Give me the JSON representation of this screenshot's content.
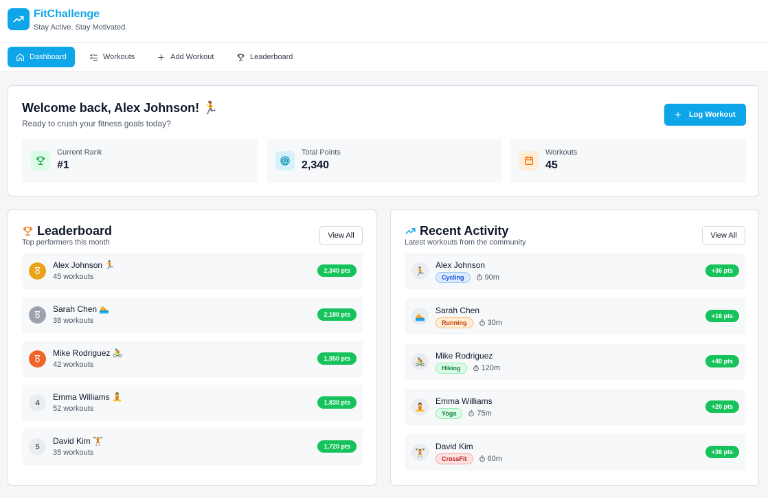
{
  "header": {
    "title": "FitChallenge",
    "subtitle": "Stay Active. Stay Motivated.",
    "logo_icon": "trending-up-icon"
  },
  "nav": {
    "tabs": [
      {
        "label": "Dashboard",
        "icon": "home-icon",
        "active": true
      },
      {
        "label": "Workouts",
        "icon": "list-icon",
        "active": false
      },
      {
        "label": "Add Workout",
        "icon": "plus-icon",
        "active": false
      },
      {
        "label": "Leaderboard",
        "icon": "trophy-icon",
        "active": false
      }
    ]
  },
  "welcome": {
    "title": "Welcome back, Alex Johnson! 🏃",
    "subtitle": "Ready to crush your fitness goals today?",
    "log_button": "Log Workout",
    "stats": [
      {
        "label": "Current Rank",
        "value": "#1",
        "icon": "trophy-icon",
        "color": "#16a34a",
        "bg": "#dcfce7"
      },
      {
        "label": "Total Points",
        "value": "2,340",
        "icon": "target-icon",
        "color": "#0891b2",
        "bg": "#d6f1fb"
      },
      {
        "label": "Workouts",
        "value": "45",
        "icon": "calendar-icon",
        "color": "#f97316",
        "bg": "#ffedd5"
      }
    ]
  },
  "leaderboard": {
    "title": "Leaderboard",
    "subtitle": "Top performers this month",
    "view_all": "View All",
    "rows": [
      {
        "rank": "",
        "medal": "gold",
        "name": "Alex Johnson 🏃",
        "workouts": "45 workouts",
        "points": "2,340 pts"
      },
      {
        "rank": "",
        "medal": "silver",
        "name": "Sarah Chen 🏊",
        "workouts": "38 workouts",
        "points": "2,180 pts"
      },
      {
        "rank": "",
        "medal": "bronze",
        "name": "Mike Rodriguez 🚴",
        "workouts": "42 workouts",
        "points": "1,950 pts"
      },
      {
        "rank": "4",
        "medal": "",
        "name": "Emma Williams 🧘",
        "workouts": "52 workouts",
        "points": "1,830 pts"
      },
      {
        "rank": "5",
        "medal": "",
        "name": "David Kim 🏋️",
        "workouts": "35 workouts",
        "points": "1,720 pts"
      }
    ]
  },
  "activity": {
    "title": "Recent Activity",
    "subtitle": "Latest workouts from the community",
    "view_all": "View All",
    "rows": [
      {
        "avatar": "🏃",
        "name": "Alex Johnson",
        "type": "Cycling",
        "tag_bg": "#dbeafe",
        "tag_fg": "#1d4ed8",
        "tag_border": "#93c5fd",
        "duration": "90m",
        "points": "+36 pts"
      },
      {
        "avatar": "🏊",
        "name": "Sarah Chen",
        "type": "Running",
        "tag_bg": "#ffedd5",
        "tag_fg": "#c2410c",
        "tag_border": "#fdba74",
        "duration": "30m",
        "points": "+16 pts"
      },
      {
        "avatar": "🚴",
        "name": "Mike Rodriguez",
        "type": "Hiking",
        "tag_bg": "#dcfce7",
        "tag_fg": "#15803d",
        "tag_border": "#86efac",
        "duration": "120m",
        "points": "+40 pts"
      },
      {
        "avatar": "🧘",
        "name": "Emma Williams",
        "type": "Yoga",
        "tag_bg": "#dcfce7",
        "tag_fg": "#15803d",
        "tag_border": "#86efac",
        "duration": "75m",
        "points": "+20 pts"
      },
      {
        "avatar": "🏋️",
        "name": "David Kim",
        "type": "CrossFit",
        "tag_bg": "#fee2e2",
        "tag_fg": "#b91c1c",
        "tag_border": "#fca5a5",
        "duration": "60m",
        "points": "+36 pts"
      }
    ]
  },
  "colors": {
    "accent": "#0ea5e9",
    "points_badge": "#16c25a",
    "gold": "#e8a317",
    "silver": "#9ca3af",
    "bronze": "#f0642a",
    "leaderboard_icon": "#ea7a17"
  }
}
